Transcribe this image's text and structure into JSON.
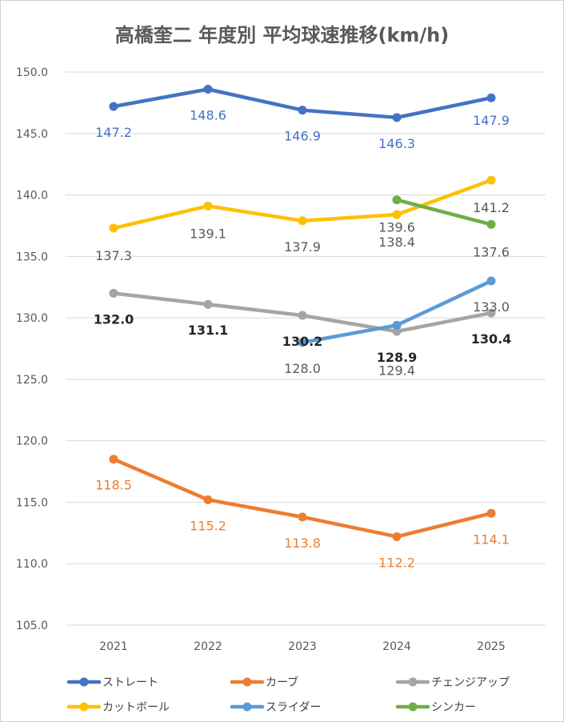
{
  "chart_data": {
    "type": "line",
    "title": "高橋奎二 年度別 平均球速推移(km/h)",
    "categories": [
      "2021",
      "2022",
      "2023",
      "2024",
      "2025"
    ],
    "ylim": [
      105,
      150
    ],
    "yticks": [
      "105.0",
      "110.0",
      "115.0",
      "120.0",
      "125.0",
      "130.0",
      "135.0",
      "140.0",
      "145.0",
      "150.0"
    ],
    "grid": true,
    "legend_position": "bottom",
    "series": [
      {
        "name": "ストレート",
        "color": "#4472C4",
        "values": [
          147.2,
          148.6,
          146.9,
          146.3,
          147.9
        ],
        "labels": [
          "147.2",
          "148.6",
          "146.9",
          "146.3",
          "147.9"
        ]
      },
      {
        "name": "カーブ",
        "color": "#ED7D31",
        "values": [
          118.5,
          115.2,
          113.8,
          112.2,
          114.1
        ],
        "labels": [
          "118.5",
          "115.2",
          "113.8",
          "112.2",
          "114.1"
        ]
      },
      {
        "name": "チェンジアップ",
        "color": "#A5A5A5",
        "values": [
          132.0,
          131.1,
          130.2,
          128.9,
          130.4
        ],
        "labels": [
          "132.0",
          "131.1",
          "130.2",
          "128.9",
          "130.4"
        ]
      },
      {
        "name": "カットボール",
        "color": "#FFC000",
        "values": [
          137.3,
          139.1,
          137.9,
          138.4,
          141.2
        ],
        "labels": [
          "137.3",
          "139.1",
          "137.9",
          "138.4",
          "141.2"
        ]
      },
      {
        "name": "スライダー",
        "color": "#5B9BD5",
        "values": [
          null,
          null,
          128.0,
          129.4,
          133.0
        ],
        "labels": [
          null,
          null,
          "128.0",
          "129.4",
          "133.0"
        ]
      },
      {
        "name": "シンカー",
        "color": "#70AD47",
        "values": [
          null,
          null,
          null,
          139.6,
          137.6
        ],
        "labels": [
          null,
          null,
          null,
          "139.6",
          "137.6"
        ]
      }
    ]
  }
}
